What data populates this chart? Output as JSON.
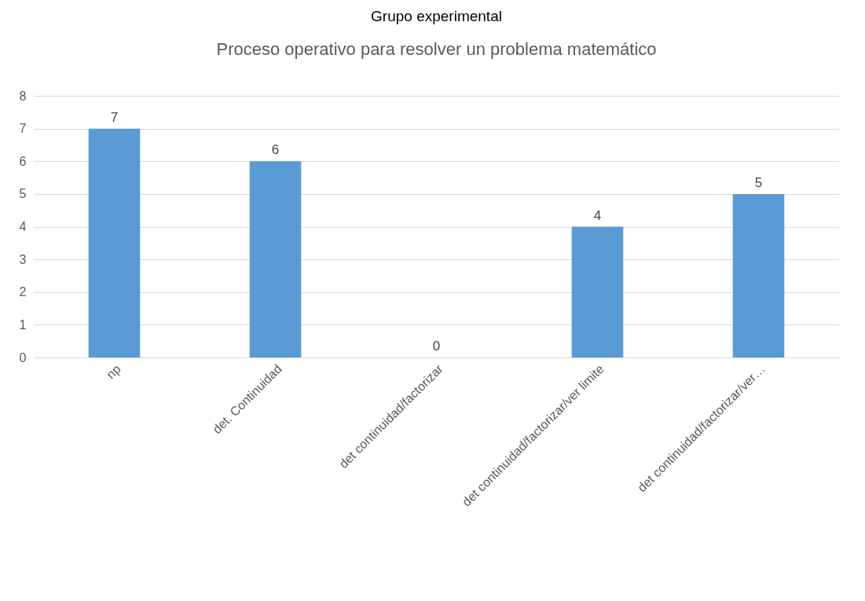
{
  "chart_data": {
    "type": "bar",
    "title": "Grupo experimental",
    "subtitle": "Proceso operativo para resolver un problema matemático",
    "categories": [
      "np",
      "det. Continuidad",
      "det continuidad/factorizar",
      "det continuidad/factorizar/ver limite",
      "det continuidad/factorizar/ver…"
    ],
    "values": [
      7,
      6,
      0,
      4,
      5
    ],
    "color": "#5b9bd5",
    "ylim": [
      0,
      8
    ],
    "yticks": [
      0,
      1,
      2,
      3,
      4,
      5,
      6,
      7,
      8
    ],
    "grid": "y",
    "data_labels": true
  }
}
